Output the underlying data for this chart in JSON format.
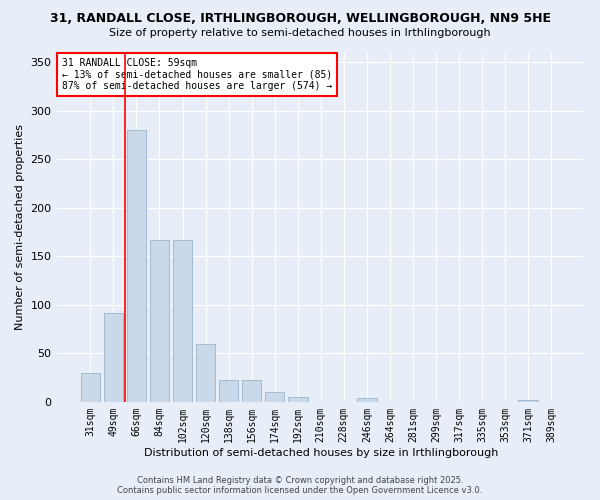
{
  "title": "31, RANDALL CLOSE, IRTHLINGBOROUGH, WELLINGBOROUGH, NN9 5HE",
  "subtitle": "Size of property relative to semi-detached houses in Irthlingborough",
  "xlabel": "Distribution of semi-detached houses by size in Irthlingborough",
  "ylabel": "Number of semi-detached properties",
  "categories": [
    "31sqm",
    "49sqm",
    "66sqm",
    "84sqm",
    "102sqm",
    "120sqm",
    "138sqm",
    "156sqm",
    "174sqm",
    "192sqm",
    "210sqm",
    "228sqm",
    "246sqm",
    "264sqm",
    "281sqm",
    "299sqm",
    "317sqm",
    "335sqm",
    "353sqm",
    "371sqm",
    "389sqm"
  ],
  "values": [
    30,
    92,
    280,
    167,
    167,
    60,
    22,
    22,
    10,
    5,
    0,
    0,
    4,
    0,
    0,
    0,
    0,
    0,
    0,
    2,
    0
  ],
  "bar_color": "#c9d9ea",
  "bar_edge_color": "#9ab4cc",
  "vline_x": 1.5,
  "vline_color": "red",
  "annotation_title": "31 RANDALL CLOSE: 59sqm",
  "annotation_line1": "← 13% of semi-detached houses are smaller (85)",
  "annotation_line2": "87% of semi-detached houses are larger (574) →",
  "ylim": [
    0,
    360
  ],
  "yticks": [
    0,
    50,
    100,
    150,
    200,
    250,
    300,
    350
  ],
  "background_color": "#e8eef8",
  "plot_background_color": "#e8eef8",
  "footer_line1": "Contains HM Land Registry data © Crown copyright and database right 2025.",
  "footer_line2": "Contains public sector information licensed under the Open Government Licence v3.0.",
  "grid_color": "#ffffff",
  "title_fontsize": 9,
  "subtitle_fontsize": 8,
  "ylabel_fontsize": 8,
  "xlabel_fontsize": 8,
  "tick_fontsize": 7,
  "annot_fontsize": 7,
  "footer_fontsize": 6
}
